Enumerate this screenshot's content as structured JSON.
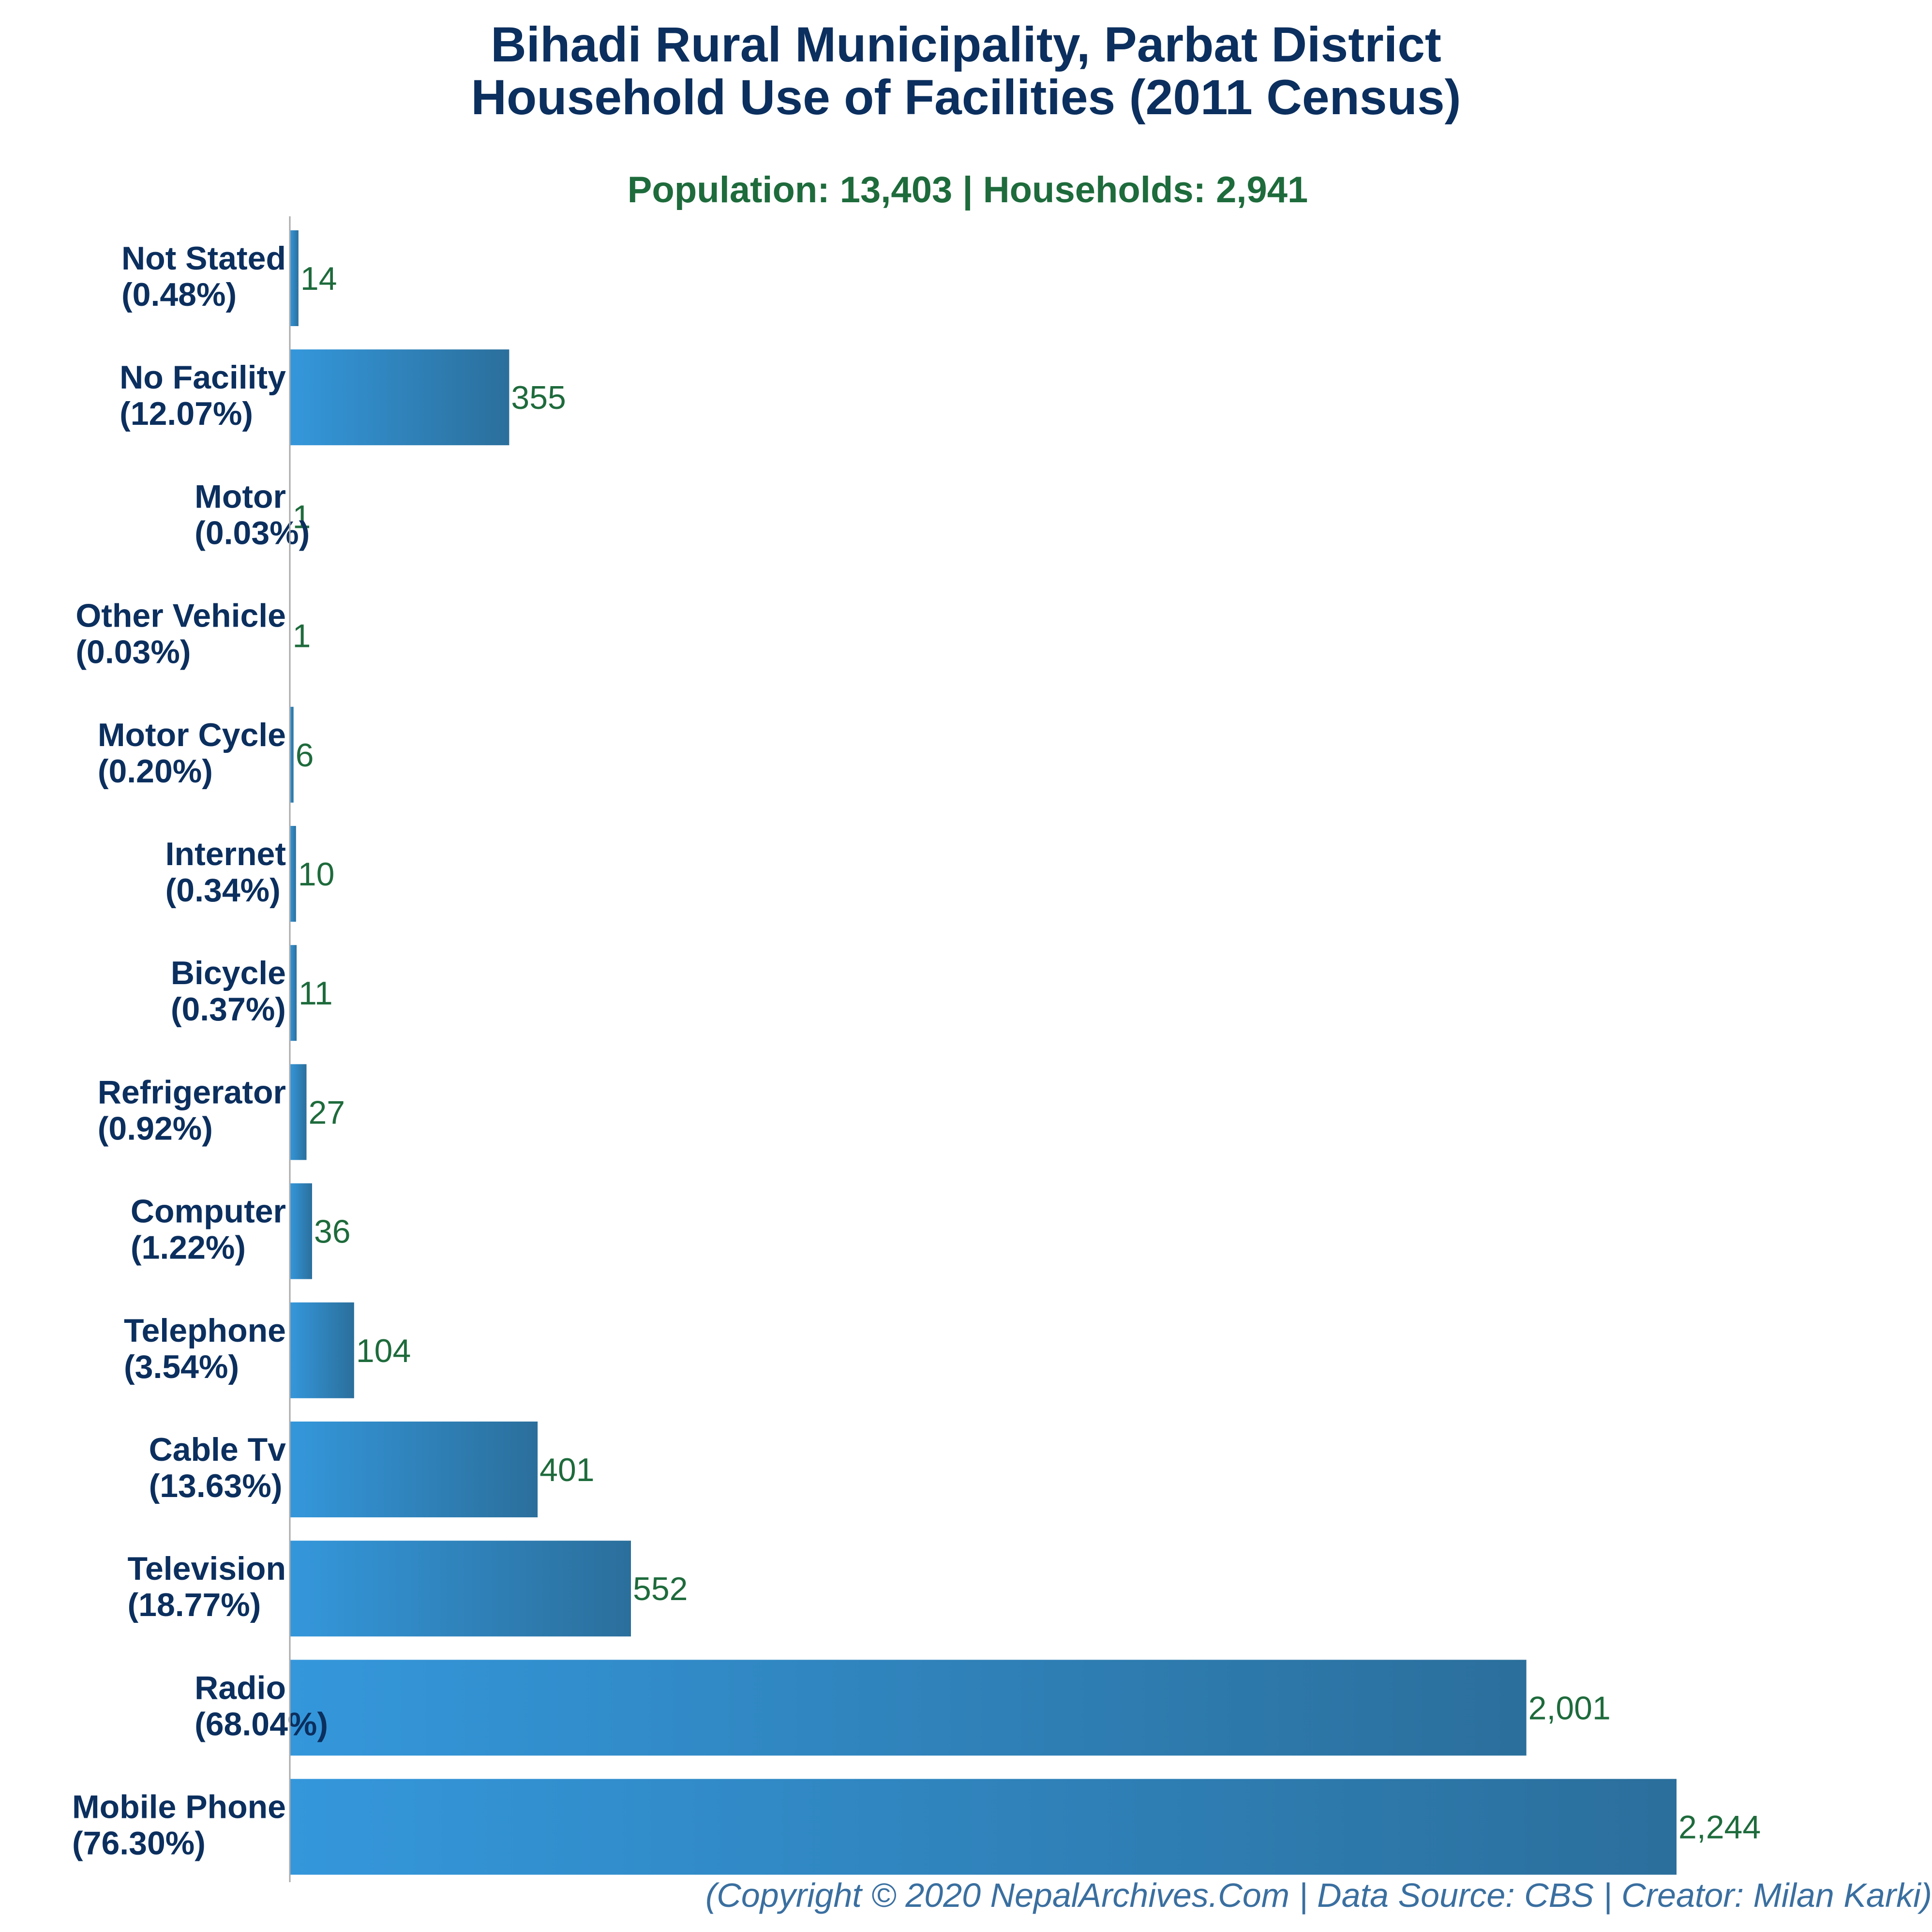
{
  "chart_data": {
    "type": "bar",
    "orientation": "horizontal",
    "title": [
      "Bihadi Rural Municipality, Parbat District",
      "Household Use of Facilities (2011 Census)"
    ],
    "subtitle": "Population: 13,403 | Households: 2,941",
    "categories": [
      {
        "name": "Not Stated",
        "percent": "(0.48%)"
      },
      {
        "name": "No Facility",
        "percent": "(12.07%)"
      },
      {
        "name": "Motor",
        "percent": "(0.03%)"
      },
      {
        "name": "Other Vehicle",
        "percent": "(0.03%)"
      },
      {
        "name": "Motor Cycle",
        "percent": "(0.20%)"
      },
      {
        "name": "Internet",
        "percent": "(0.34%)"
      },
      {
        "name": "Bicycle",
        "percent": "(0.37%)"
      },
      {
        "name": "Refrigerator",
        "percent": "(0.92%)"
      },
      {
        "name": "Computer",
        "percent": "(1.22%)"
      },
      {
        "name": "Telephone",
        "percent": "(3.54%)"
      },
      {
        "name": "Cable Tv",
        "percent": "(13.63%)"
      },
      {
        "name": "Television",
        "percent": "(18.77%)"
      },
      {
        "name": "Radio",
        "percent": "(68.04%)"
      },
      {
        "name": "Mobile Phone",
        "percent": "(76.30%)"
      }
    ],
    "values": [
      14,
      355,
      1,
      1,
      6,
      10,
      11,
      27,
      36,
      104,
      401,
      552,
      2001,
      2244
    ],
    "value_labels": [
      "14",
      "355",
      "1",
      "1",
      "6",
      "10",
      "11",
      "27",
      "36",
      "104",
      "401",
      "552",
      "2,001",
      "2,244"
    ],
    "xlim": [
      0,
      2244
    ],
    "grid": false,
    "legend": "none",
    "colors": {
      "bar_light": "#3497db",
      "bar_dark": "#2b6f9c",
      "title": "#0b2f5e",
      "subtitle": "#1e6b3c",
      "value_label": "#1e6b3c",
      "footer": "#3a6fa0",
      "axis": "#aaaaaa"
    }
  },
  "footer": "(Copyright © 2020 NepalArchives.Com | Data Source: CBS | Creator: Milan Karki)"
}
